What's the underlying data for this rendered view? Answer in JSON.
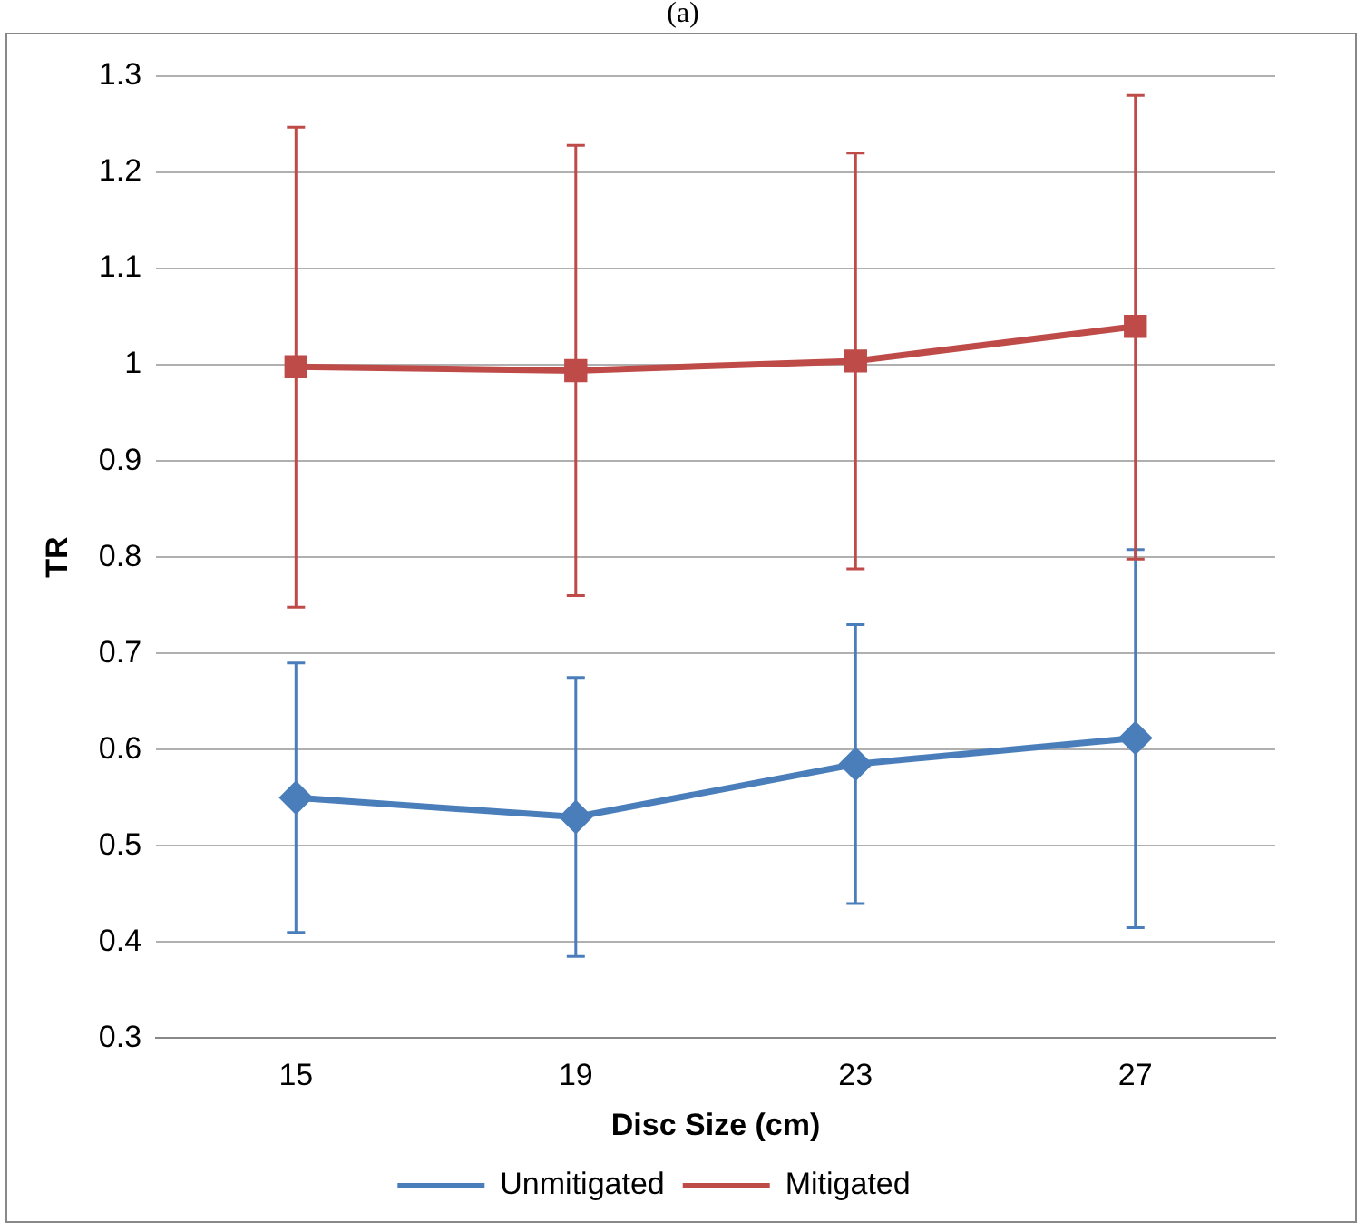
{
  "chart_data": {
    "type": "line",
    "title": "(a)",
    "xlabel": "Disc Size (cm)",
    "ylabel": "TR",
    "categories": [
      "15",
      "19",
      "23",
      "27"
    ],
    "series": [
      {
        "name": "Unmitigated",
        "color": "#4a7ebb",
        "marker": "diamond",
        "values": [
          0.55,
          0.53,
          0.585,
          0.612
        ],
        "errors": [
          [
            0.41,
            0.69
          ],
          [
            0.385,
            0.675
          ],
          [
            0.44,
            0.73
          ],
          [
            0.415,
            0.808
          ]
        ]
      },
      {
        "name": "Mitigated",
        "color": "#be4b48",
        "marker": "square",
        "values": [
          0.998,
          0.994,
          1.004,
          1.04
        ],
        "errors": [
          [
            0.748,
            1.247
          ],
          [
            0.76,
            1.228
          ],
          [
            0.788,
            1.22
          ],
          [
            0.798,
            1.28
          ]
        ]
      }
    ],
    "ylim": [
      0.3,
      1.3
    ],
    "yticks": [
      0.3,
      0.4,
      0.5,
      0.6,
      0.7,
      0.8,
      0.9,
      1,
      1.1,
      1.2,
      1.3
    ],
    "grid": "y",
    "legend": "bottom"
  }
}
